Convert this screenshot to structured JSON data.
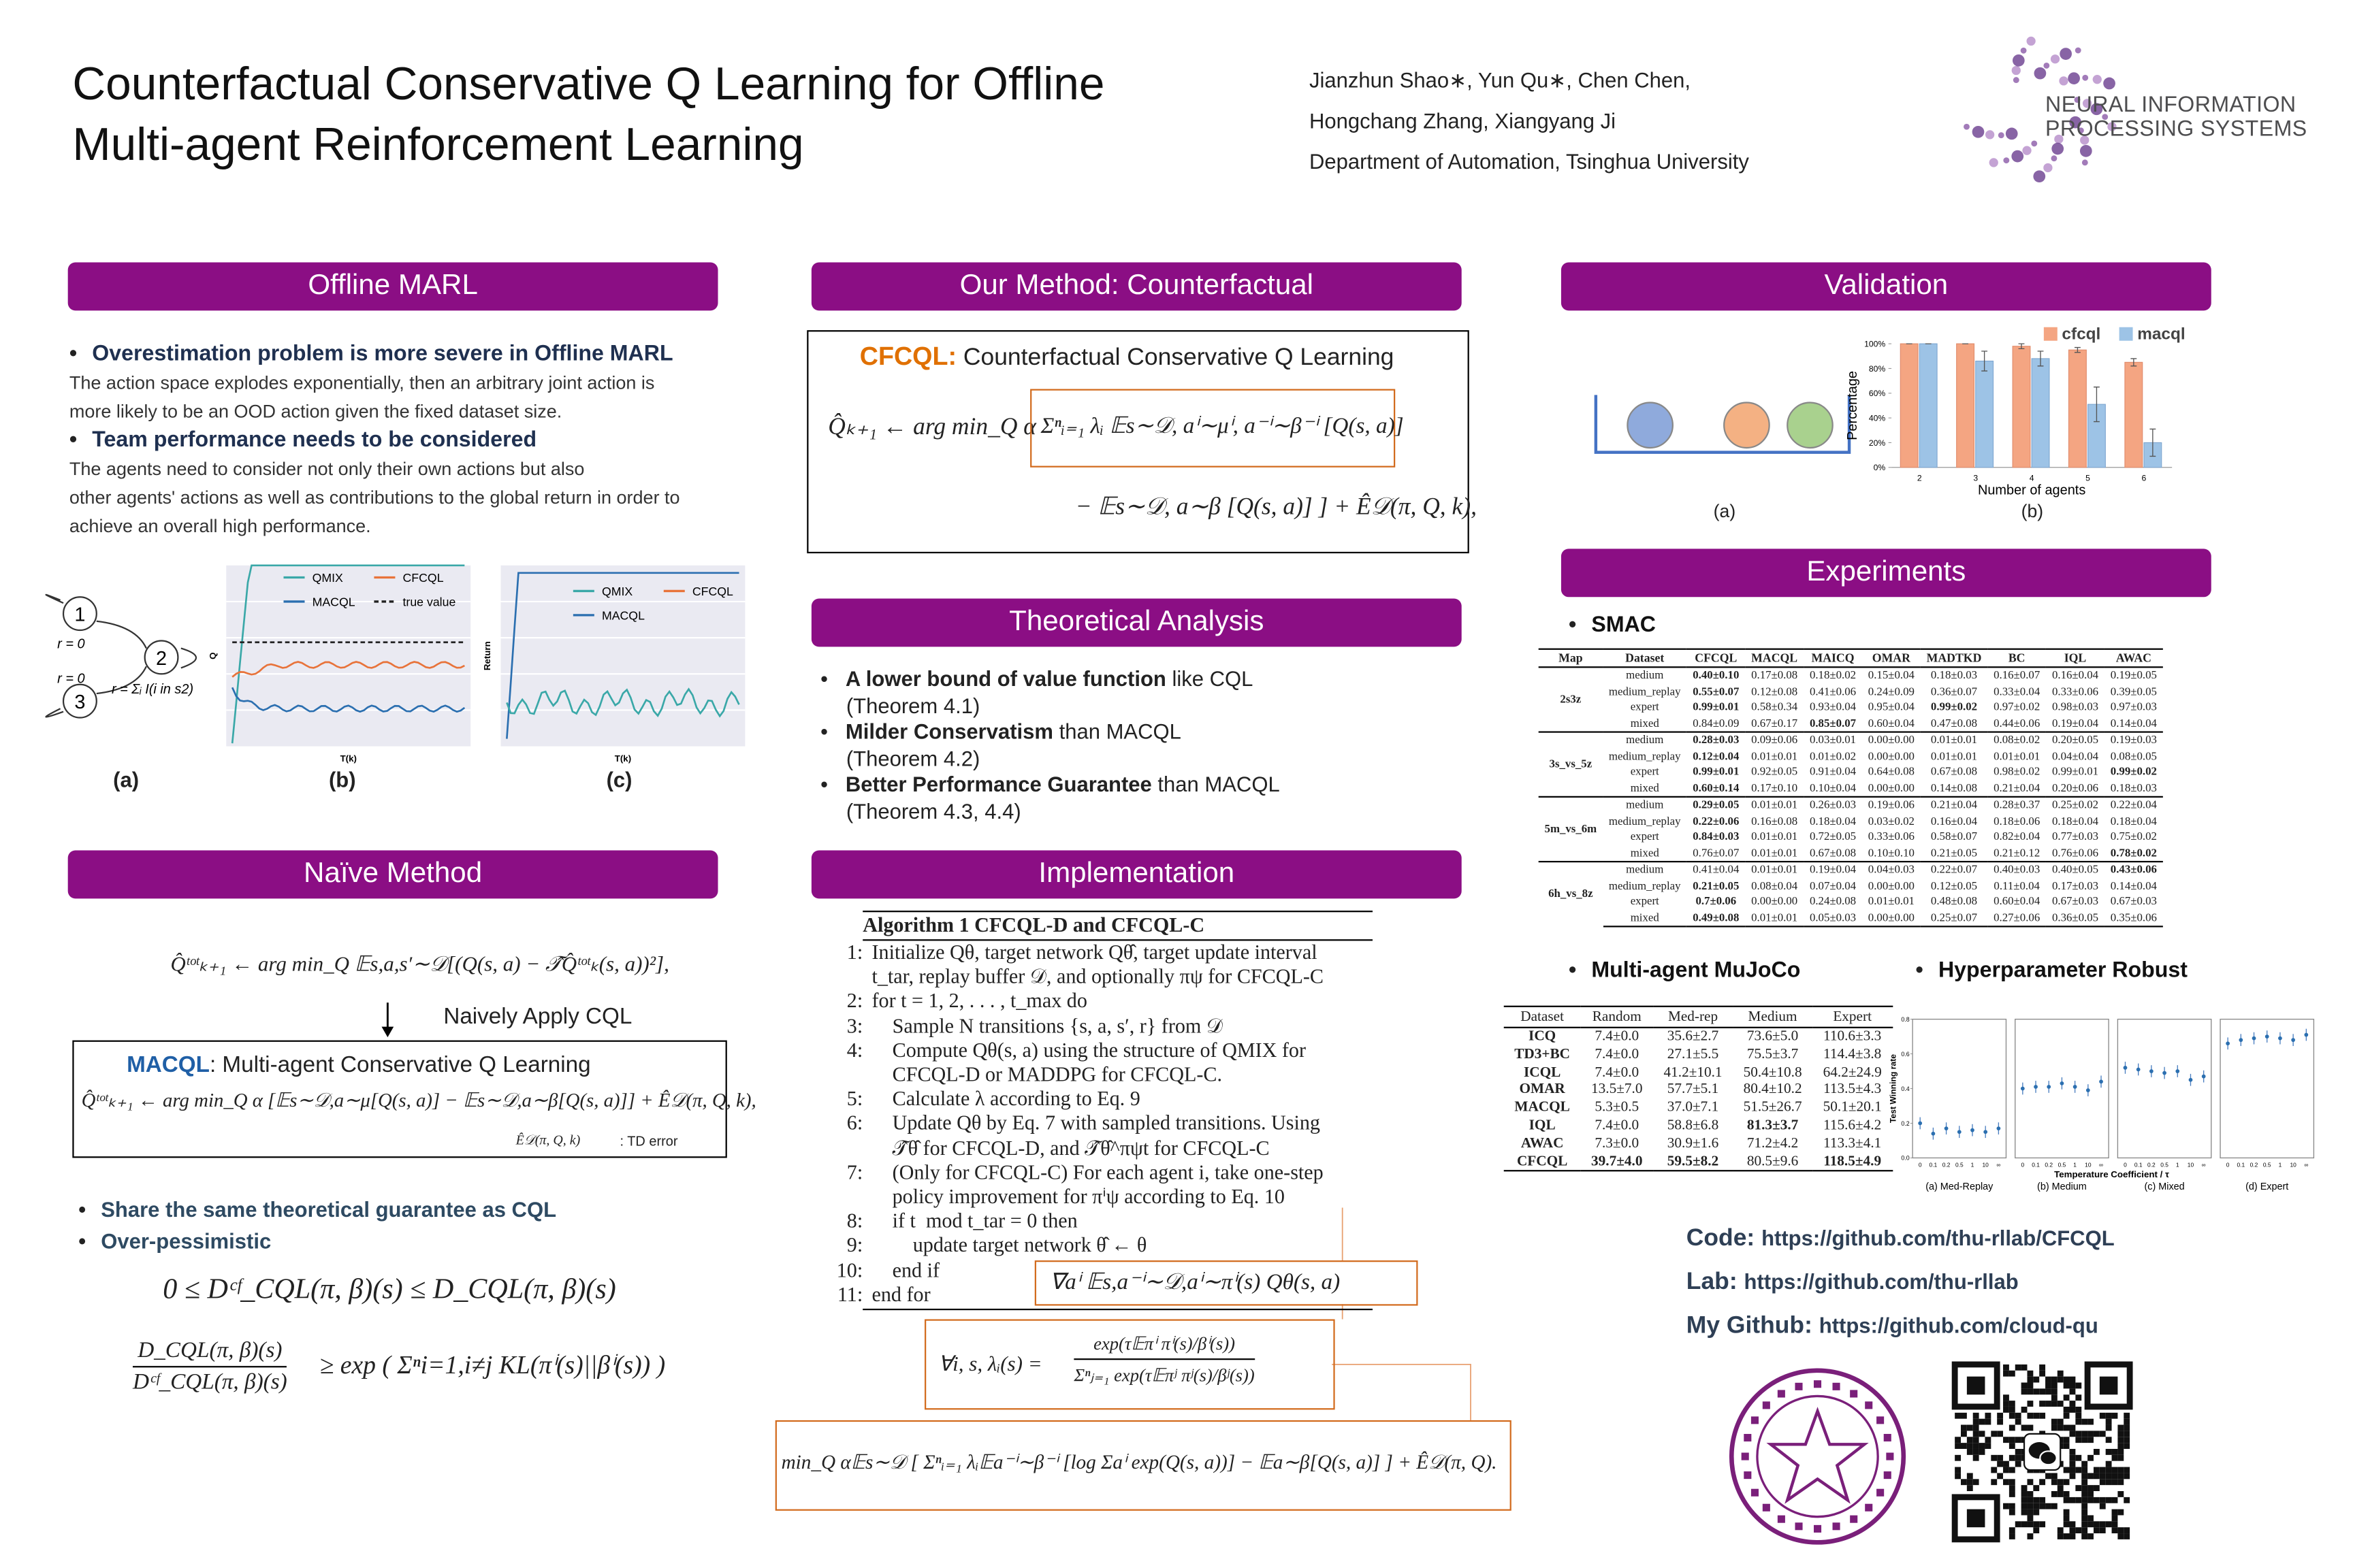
{
  "header": {
    "title": [
      "Counterfactual Conservative Q Learning for Offline",
      "Multi-agent Reinforcement Learning"
    ],
    "authors": [
      "Jianzhun Shao∗, Yun Qu∗, Chen Chen,",
      "Hongchang Zhang, Xiangyang Ji"
    ],
    "affiliation": "Department of Automation, Tsinghua University",
    "logo": [
      "NEURAL INFORMATION",
      "PROCESSING SYSTEMS"
    ]
  },
  "offline_marl": {
    "heading": "Offline MARL",
    "points": [
      {
        "head": "Overestimation problem is more severe in Offline MARL",
        "text": [
          "The action space explodes exponentially, then an arbitrary joint action is",
          "more likely to be an OOD action given the fixed dataset size."
        ]
      },
      {
        "head": "Team performance needs to be considered",
        "text": [
          "The agents need to consider not only their own actions but also",
          "other agents' actions as well as contributions to the global return in order to",
          "achieve an overall high performance."
        ]
      }
    ],
    "diagram": {
      "nodes": [
        "1",
        "2",
        "3"
      ],
      "rewards": [
        "r = 0",
        "r = 0",
        "r = Σᵢ I(i in s2)"
      ]
    },
    "plot_b": {
      "legend": [
        "QMIX",
        "CFCQL",
        "MACQL",
        "true value"
      ],
      "ylabel": "Q",
      "xlabel": "T(k)"
    },
    "plot_c": {
      "legend": [
        "QMIX",
        "CFCQL",
        "MACQL"
      ],
      "ylabel": "Return",
      "xlabel": "T(k)"
    },
    "captions": [
      "(a)",
      "(b)",
      "(c)"
    ]
  },
  "method": {
    "heading": "Our Method: Counterfactual",
    "name": "CFCQL:",
    "full": "Counterfactual Conservative Q Learning",
    "eq1a": "Q̂ₖ₊₁ ← arg min_Q α",
    "eq1b": "Σⁿᵢ₌₁ λᵢ 𝔼s∼𝒟, aⁱ∼μⁱ, a⁻ⁱ∼β⁻ⁱ [Q(s, a)]",
    "eq2": "− 𝔼s∼𝒟, a∼β [Q(s, a)] ] + Ê𝒟(π, Q, k),"
  },
  "theory": {
    "heading": "Theoretical Analysis",
    "points": [
      {
        "bold": "A lower bound of value function",
        "rest": "like CQL",
        "ref": "(Theorem 4.1)"
      },
      {
        "bold": "Milder Conservatism",
        "rest": "than MACQL",
        "ref": "(Theorem 4.2)"
      },
      {
        "bold": "Better Performance Guarantee",
        "rest": "than MACQL",
        "ref": "(Theorem 4.3, 4.4)"
      }
    ]
  },
  "naive": {
    "heading": "Naïve Method",
    "eq": "Q̂ᵗᵒᵗₖ₊₁ ← arg min_Q 𝔼s,a,s′∼𝒟[(Q(s, a) − 𝒯̂Q̂ᵗᵒᵗₖ(s, a))²],",
    "arrow_text": "Naively Apply CQL",
    "name": "MACQL",
    "full": ": Multi-agent Conservative Q Learning",
    "eq2": "Q̂ᵗᵒᵗₖ₊₁ ← arg min_Q α [𝔼s∼𝒟,a∼μ[Q(s, a)] − 𝔼s∼𝒟,a∼β[Q(s, a)]] + Ê𝒟(π, Q, k),",
    "td_symbol": "Ê𝒟(π, Q, k)",
    "td_note": ": TD error",
    "points": [
      "Share the same theoretical guarantee as CQL",
      "Over-pessimistic"
    ],
    "ineq1": "0 ≤ Dᶜᶠ_CQL(π, β)(s) ≤ D_CQL(π, β)(s)",
    "ineq2_num": "D_CQL(π, β)(s)",
    "ineq2_den": "Dᶜᶠ_CQL(π, β)(s)",
    "ineq2_rest": "≥ exp ( Σⁿi=1,i≠j KL(πⁱ(s)||βⁱ(s)) )"
  },
  "implementation": {
    "heading": "Implementation",
    "algo_title": "Algorithm 1 CFCQL-D and CFCQL-C",
    "lines": [
      {
        "num": "1:",
        "text": [
          "Initialize Qθ, target network Qθ̂, target update interval",
          "t_tar, replay buffer 𝒟, and optionally πψ for CFCQL-C"
        ]
      },
      {
        "num": "2:",
        "text": [
          "for t = 1, 2, . . . , t_max do"
        ]
      },
      {
        "num": "3:",
        "text": [
          "    Sample N transitions {s, a, s′, r} from 𝒟"
        ]
      },
      {
        "num": "4:",
        "text": [
          "    Compute Qθ(s, a) using the structure of QMIX for",
          "    CFCQL-D or MADDPG for CFCQL-C."
        ]
      },
      {
        "num": "5:",
        "text": [
          "    Calculate λ according to Eq. 9"
        ]
      },
      {
        "num": "6:",
        "text": [
          "    Update Qθ by Eq. 7 with sampled transitions. Using",
          "    𝒯̂θ̂ for CFCQL-D, and 𝒯̂θ̂^πψt for CFCQL-C"
        ]
      },
      {
        "num": "7:",
        "text": [
          "    (Only for CFCQL-C) For each agent i, take one-step",
          "    policy improvement for πⁱψ according to Eq. 10"
        ]
      },
      {
        "num": "8:",
        "text": [
          "    if t  mod t_tar = 0 then"
        ]
      },
      {
        "num": "9:",
        "text": [
          "        update target network θ̂ ← θ"
        ]
      },
      {
        "num": "10:",
        "text": [
          "    end if"
        ]
      },
      {
        "num": "11:",
        "text": [
          "end for"
        ]
      }
    ],
    "grad": "∇aⁱ 𝔼s,a⁻ⁱ∼𝒟,aⁱ∼πⁱ(s) Qθ(s, a)",
    "lambda_lhs": "∀i, s, λᵢ(s) =",
    "lambda_num": "exp(τ𝔼πⁱ πⁱ(s)/βⁱ(s))",
    "lambda_den": "Σⁿⱼ₌₁ exp(τ𝔼πʲ πʲ(s)/βʲ(s))",
    "objective": "min_Q α𝔼s∼𝒟 [ Σⁿᵢ₌₁ λᵢ𝔼a⁻ⁱ∼β⁻ⁱ [log Σaⁱ exp(Q(s, a))] − 𝔼a∼β[Q(s, a)] ] + Ê𝒟(π, Q)."
  },
  "validation": {
    "heading": "Validation",
    "captions": [
      "(a)",
      "(b)"
    ]
  },
  "chart_data": {
    "type": "bar",
    "xlabel": "Number of agents",
    "ylabel": "Percentage",
    "categories": [
      "2",
      "3",
      "4",
      "5",
      "6"
    ],
    "series": [
      {
        "name": "cfcql",
        "color": "#f4a582",
        "values": [
          100,
          100,
          98,
          95,
          85
        ],
        "errors": [
          0,
          0,
          2,
          2,
          3
        ]
      },
      {
        "name": "macql",
        "color": "#9dc3e6",
        "values": [
          100,
          86,
          88,
          51,
          20
        ],
        "errors": [
          0,
          8,
          6,
          14,
          11
        ]
      }
    ],
    "ylim": [
      0,
      100
    ],
    "yticks": [
      {
        "value": 0,
        "label": "0%"
      },
      {
        "value": 20,
        "label": "20%"
      },
      {
        "value": 40,
        "label": "40%"
      },
      {
        "value": 60,
        "label": "60%"
      },
      {
        "value": 80,
        "label": "80%"
      },
      {
        "value": 100,
        "label": "100%"
      }
    ],
    "legend": "top-right"
  },
  "experiments": {
    "heading": "Experiments",
    "smac": {
      "title": "SMAC",
      "columns": [
        "Map",
        "Dataset",
        "CFCQL",
        "MACQL",
        "MAICQ",
        "OMAR",
        "MADTKD",
        "BC",
        "IQL",
        "AWAC"
      ],
      "groups": [
        {
          "map": "2s3z",
          "rows": [
            {
              "dataset": "medium",
              "cells": [
                "0.40±0.10",
                "0.17±0.08",
                "0.18±0.02",
                "0.15±0.04",
                "0.18±0.03",
                "0.16±0.07",
                "0.16±0.04",
                "0.19±0.05"
              ],
              "bold": [
                0
              ]
            },
            {
              "dataset": "medium_replay",
              "cells": [
                "0.55±0.07",
                "0.12±0.08",
                "0.41±0.06",
                "0.24±0.09",
                "0.36±0.07",
                "0.33±0.04",
                "0.33±0.06",
                "0.39±0.05"
              ],
              "bold": [
                0
              ]
            },
            {
              "dataset": "expert",
              "cells": [
                "0.99±0.01",
                "0.58±0.34",
                "0.93±0.04",
                "0.95±0.04",
                "0.99±0.02",
                "0.97±0.02",
                "0.98±0.03",
                "0.97±0.03"
              ],
              "bold": [
                0,
                4
              ]
            },
            {
              "dataset": "mixed",
              "cells": [
                "0.84±0.09",
                "0.67±0.17",
                "0.85±0.07",
                "0.60±0.04",
                "0.47±0.08",
                "0.44±0.06",
                "0.19±0.04",
                "0.14±0.04"
              ],
              "bold": [
                2
              ]
            }
          ]
        },
        {
          "map": "3s_vs_5z",
          "rows": [
            {
              "dataset": "medium",
              "cells": [
                "0.28±0.03",
                "0.09±0.06",
                "0.03±0.01",
                "0.00±0.00",
                "0.01±0.01",
                "0.08±0.02",
                "0.20±0.05",
                "0.19±0.03"
              ],
              "bold": [
                0
              ]
            },
            {
              "dataset": "medium_replay",
              "cells": [
                "0.12±0.04",
                "0.01±0.01",
                "0.01±0.02",
                "0.00±0.00",
                "0.01±0.01",
                "0.01±0.01",
                "0.04±0.04",
                "0.08±0.05"
              ],
              "bold": [
                0
              ]
            },
            {
              "dataset": "expert",
              "cells": [
                "0.99±0.01",
                "0.92±0.05",
                "0.91±0.04",
                "0.64±0.08",
                "0.67±0.08",
                "0.98±0.02",
                "0.99±0.01",
                "0.99±0.02"
              ],
              "bold": [
                0,
                7
              ]
            },
            {
              "dataset": "mixed",
              "cells": [
                "0.60±0.14",
                "0.17±0.10",
                "0.10±0.04",
                "0.00±0.00",
                "0.14±0.08",
                "0.21±0.04",
                "0.20±0.06",
                "0.18±0.03"
              ],
              "bold": [
                0
              ]
            }
          ]
        },
        {
          "map": "5m_vs_6m",
          "rows": [
            {
              "dataset": "medium",
              "cells": [
                "0.29±0.05",
                "0.01±0.01",
                "0.26±0.03",
                "0.19±0.06",
                "0.21±0.04",
                "0.28±0.37",
                "0.25±0.02",
                "0.22±0.04"
              ],
              "bold": [
                0
              ]
            },
            {
              "dataset": "medium_replay",
              "cells": [
                "0.22±0.06",
                "0.16±0.08",
                "0.18±0.04",
                "0.03±0.02",
                "0.16±0.04",
                "0.18±0.06",
                "0.18±0.04",
                "0.18±0.04"
              ],
              "bold": [
                0
              ]
            },
            {
              "dataset": "expert",
              "cells": [
                "0.84±0.03",
                "0.01±0.01",
                "0.72±0.05",
                "0.33±0.06",
                "0.58±0.07",
                "0.82±0.04",
                "0.77±0.03",
                "0.75±0.02"
              ],
              "bold": [
                0
              ]
            },
            {
              "dataset": "mixed",
              "cells": [
                "0.76±0.07",
                "0.01±0.01",
                "0.67±0.08",
                "0.10±0.10",
                "0.21±0.05",
                "0.21±0.12",
                "0.76±0.06",
                "0.78±0.02"
              ],
              "bold": [
                7
              ]
            }
          ]
        },
        {
          "map": "6h_vs_8z",
          "rows": [
            {
              "dataset": "medium",
              "cells": [
                "0.41±0.04",
                "0.01±0.01",
                "0.19±0.04",
                "0.04±0.03",
                "0.22±0.07",
                "0.40±0.03",
                "0.40±0.05",
                "0.43±0.06"
              ],
              "bold": [
                7
              ]
            },
            {
              "dataset": "medium_replay",
              "cells": [
                "0.21±0.05",
                "0.08±0.04",
                "0.07±0.04",
                "0.00±0.00",
                "0.12±0.05",
                "0.11±0.04",
                "0.17±0.03",
                "0.14±0.04"
              ],
              "bold": [
                0
              ]
            },
            {
              "dataset": "expert",
              "cells": [
                "0.7±0.06",
                "0.00±0.00",
                "0.24±0.08",
                "0.01±0.01",
                "0.48±0.08",
                "0.60±0.04",
                "0.67±0.03",
                "0.67±0.03"
              ],
              "bold": [
                0
              ]
            },
            {
              "dataset": "mixed",
              "cells": [
                "0.49±0.08",
                "0.01±0.01",
                "0.05±0.03",
                "0.00±0.00",
                "0.25±0.07",
                "0.27±0.06",
                "0.36±0.05",
                "0.35±0.06"
              ],
              "bold": [
                0
              ]
            }
          ]
        }
      ]
    },
    "mujoco": {
      "title": "Multi-agent MuJoCo",
      "columns": [
        "Dataset",
        "Random",
        "Med-rep",
        "Medium",
        "Expert"
      ],
      "rows": [
        {
          "cells": [
            "ICQ",
            "7.4±0.0",
            "35.6±2.7",
            "73.6±5.0",
            "110.6±3.3"
          ],
          "bold": []
        },
        {
          "cells": [
            "TD3+BC",
            "7.4±0.0",
            "27.1±5.5",
            "75.5±3.7",
            "114.4±3.8"
          ],
          "bold": []
        },
        {
          "cells": [
            "ICQL",
            "7.4±0.0",
            "41.2±10.1",
            "50.4±10.8",
            "64.2±24.9"
          ],
          "bold": []
        },
        {
          "cells": [
            "OMAR",
            "13.5±7.0",
            "57.7±5.1",
            "80.4±10.2",
            "113.5±4.3"
          ],
          "bold": []
        },
        {
          "cells": [
            "MACQL",
            "5.3±0.5",
            "37.0±7.1",
            "51.5±26.7",
            "50.1±20.1"
          ],
          "bold": []
        },
        {
          "cells": [
            "IQL",
            "7.4±0.0",
            "58.8±6.8",
            "81.3±3.7",
            "115.6±4.2"
          ],
          "bold": [
            3
          ]
        },
        {
          "cells": [
            "AWAC",
            "7.3±0.0",
            "30.9±1.6",
            "71.2±4.2",
            "113.3±4.1"
          ],
          "bold": []
        },
        {
          "cells": [
            "CFCQL",
            "39.7±4.0",
            "59.5±8.2",
            "80.5±9.6",
            "118.5±4.9"
          ],
          "bold": [
            1,
            2,
            4
          ]
        }
      ]
    },
    "hyper": {
      "title": "Hyperparameter Robust",
      "ylabel": "Test Winning rate",
      "xlabel": "Temperature Coefficient / τ",
      "xticks": [
        "0",
        "0.1",
        "0.2",
        "0.5",
        "1",
        "10",
        "∞"
      ],
      "ylim": [
        0,
        0.8
      ],
      "yticks": [
        {
          "value": 0,
          "label": "0.0"
        },
        {
          "value": 0.2,
          "label": "0.2"
        },
        {
          "value": 0.4,
          "label": "0.4"
        },
        {
          "value": 0.6,
          "label": "0.6"
        },
        {
          "value": 0.8,
          "label": "0.8"
        }
      ],
      "panels": [
        {
          "caption": "(a) Med-Replay",
          "values": [
            0.2,
            0.14,
            0.17,
            0.15,
            0.16,
            0.15,
            0.17
          ]
        },
        {
          "caption": "(b) Medium",
          "values": [
            0.4,
            0.41,
            0.41,
            0.43,
            0.41,
            0.39,
            0.44
          ]
        },
        {
          "caption": "(c) Mixed",
          "values": [
            0.52,
            0.51,
            0.5,
            0.49,
            0.5,
            0.45,
            0.47
          ]
        },
        {
          "caption": "(d) Expert",
          "values": [
            0.66,
            0.68,
            0.69,
            0.7,
            0.69,
            0.68,
            0.71
          ]
        }
      ]
    }
  },
  "links": [
    {
      "label": "Code:",
      "url": "https://github.com/thu-rllab/CFCQL"
    },
    {
      "label": "Lab:",
      "url": "https://github.com/thu-rllab"
    },
    {
      "label": "My Github:",
      "url": "https://github.com/cloud-qu"
    }
  ]
}
